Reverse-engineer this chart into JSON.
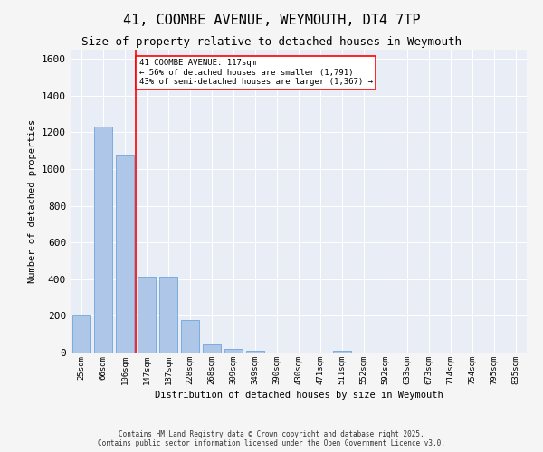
{
  "title_line1": "41, COOMBE AVENUE, WEYMOUTH, DT4 7TP",
  "title_line2": "Size of property relative to detached houses in Weymouth",
  "xlabel": "Distribution of detached houses by size in Weymouth",
  "ylabel": "Number of detached properties",
  "categories": [
    "25sqm",
    "66sqm",
    "106sqm",
    "147sqm",
    "187sqm",
    "228sqm",
    "268sqm",
    "309sqm",
    "349sqm",
    "390sqm",
    "430sqm",
    "471sqm",
    "511sqm",
    "552sqm",
    "592sqm",
    "633sqm",
    "673sqm",
    "714sqm",
    "754sqm",
    "795sqm",
    "835sqm"
  ],
  "values": [
    200,
    1230,
    1075,
    415,
    415,
    175,
    45,
    22,
    12,
    0,
    0,
    0,
    12,
    0,
    0,
    0,
    0,
    0,
    0,
    0,
    0
  ],
  "bar_color": "#aec6e8",
  "bar_edge_color": "#5b9bd5",
  "background_color": "#e8edf6",
  "grid_color": "#ffffff",
  "vline_x": 2.5,
  "vline_color": "red",
  "annotation_text": "41 COOMBE AVENUE: 117sqm\n← 56% of detached houses are smaller (1,791)\n43% of semi-detached houses are larger (1,367) →",
  "annotation_box_color": "white",
  "annotation_box_edge_color": "red",
  "ylim": [
    0,
    1650
  ],
  "yticks": [
    0,
    200,
    400,
    600,
    800,
    1000,
    1200,
    1400,
    1600
  ],
  "footer_line1": "Contains HM Land Registry data © Crown copyright and database right 2025.",
  "footer_line2": "Contains public sector information licensed under the Open Government Licence v3.0.",
  "fig_bg_color": "#f5f5f5"
}
